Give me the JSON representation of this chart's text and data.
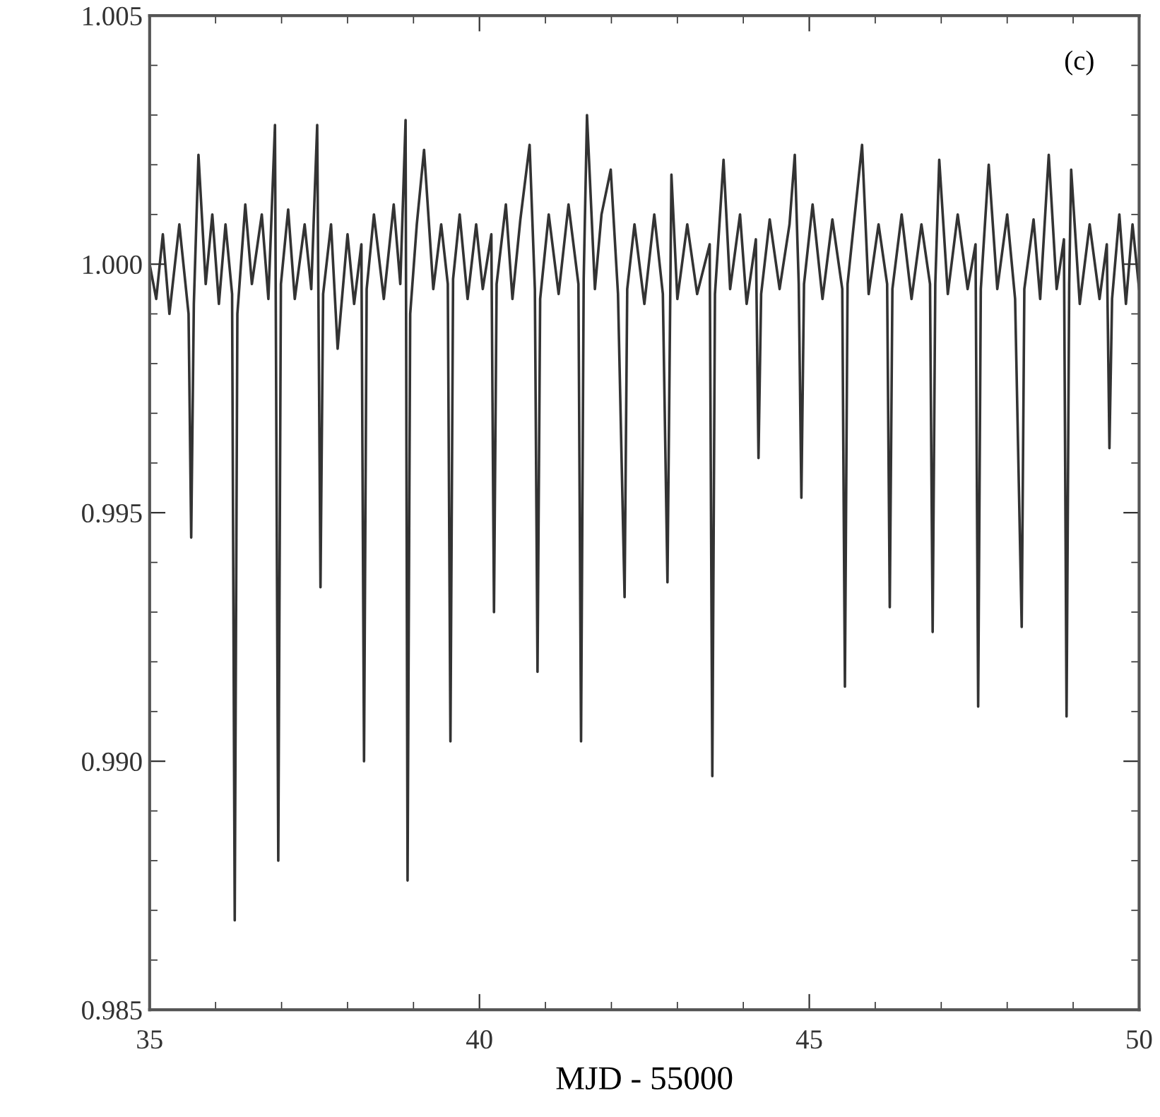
{
  "chart_data": {
    "type": "line",
    "xlabel": "MJD - 55000",
    "annotations": [
      "(c)"
    ],
    "xlim": [
      35,
      50
    ],
    "xticks": [
      35,
      40,
      45,
      50
    ],
    "ylim": [
      0.985,
      1.005
    ],
    "yticks": [
      {
        "value": 0.985,
        "label": "0.985"
      },
      {
        "value": 0.99,
        "label": "0.990"
      },
      {
        "value": 0.995,
        "label": "0.995"
      },
      {
        "value": 1.0,
        "label": "1.000"
      },
      {
        "value": 1.005,
        "label": "1.005"
      }
    ],
    "grid": false,
    "marker": "none",
    "line_style": "solid",
    "series": [
      {
        "color": "#333333",
        "x": [
          35.0,
          35.1,
          35.2,
          35.3,
          35.45,
          35.59,
          35.63,
          35.67,
          35.74,
          35.85,
          35.95,
          36.05,
          36.15,
          36.25,
          36.29,
          36.33,
          36.45,
          36.55,
          36.7,
          36.8,
          36.9,
          36.95,
          36.99,
          37.1,
          37.2,
          37.35,
          37.45,
          37.54,
          37.59,
          37.63,
          37.75,
          37.85,
          38.0,
          38.1,
          38.21,
          38.25,
          38.29,
          38.4,
          38.55,
          38.7,
          38.8,
          38.88,
          38.91,
          38.95,
          39.05,
          39.16,
          39.3,
          39.42,
          39.52,
          39.56,
          39.6,
          39.7,
          39.82,
          39.95,
          40.05,
          40.18,
          40.22,
          40.26,
          40.4,
          40.5,
          40.62,
          40.76,
          40.84,
          40.88,
          40.92,
          41.05,
          41.2,
          41.35,
          41.5,
          41.54,
          41.58,
          41.63,
          41.75,
          41.85,
          41.99,
          42.1,
          42.2,
          42.24,
          42.35,
          42.5,
          42.65,
          42.78,
          42.85,
          42.91,
          43.0,
          43.15,
          43.3,
          43.49,
          43.53,
          43.57,
          43.7,
          43.8,
          43.95,
          44.05,
          44.19,
          44.23,
          44.27,
          44.4,
          44.55,
          44.7,
          44.78,
          44.84,
          44.88,
          44.92,
          45.05,
          45.2,
          45.35,
          45.5,
          45.54,
          45.58,
          45.8,
          45.9,
          46.05,
          46.18,
          46.22,
          46.26,
          46.4,
          46.55,
          46.7,
          46.83,
          46.87,
          46.91,
          46.97,
          47.1,
          47.25,
          47.4,
          47.52,
          47.56,
          47.6,
          47.72,
          47.85,
          48.0,
          48.12,
          48.22,
          48.26,
          48.4,
          48.5,
          48.63,
          48.75,
          48.86,
          48.9,
          48.94,
          48.97,
          49.1,
          49.25,
          49.4,
          49.51,
          49.55,
          49.59,
          49.7,
          49.8,
          49.9,
          50.0
        ],
        "values": [
          1.0,
          0.9993,
          1.0006,
          0.999,
          1.0008,
          0.999,
          0.9945,
          0.9992,
          1.0022,
          0.9996,
          1.001,
          0.9992,
          1.0008,
          0.9994,
          0.9868,
          0.999,
          1.0012,
          0.9996,
          1.001,
          0.9993,
          1.0028,
          0.988,
          0.9996,
          1.0011,
          0.9993,
          1.0008,
          0.9995,
          1.0028,
          0.9935,
          0.9994,
          1.0008,
          0.9983,
          1.0006,
          0.9992,
          1.0004,
          0.99,
          0.9995,
          1.001,
          0.9993,
          1.0012,
          0.9996,
          1.0029,
          0.9876,
          0.999,
          1.0008,
          1.0023,
          0.9995,
          1.0008,
          0.9996,
          0.9904,
          0.9997,
          1.001,
          0.9993,
          1.0008,
          0.9995,
          1.0006,
          0.993,
          0.9996,
          1.0012,
          0.9993,
          1.0009,
          1.0024,
          0.9995,
          0.9918,
          0.9993,
          1.001,
          0.9994,
          1.0012,
          0.9996,
          0.9904,
          0.9997,
          1.003,
          0.9995,
          1.001,
          1.0019,
          0.9994,
          0.9933,
          0.9995,
          1.0008,
          0.9992,
          1.001,
          0.9994,
          0.9936,
          1.0018,
          0.9993,
          1.0008,
          0.9994,
          1.0004,
          0.9897,
          0.9994,
          1.0021,
          0.9995,
          1.001,
          0.9992,
          1.0005,
          0.9961,
          0.9994,
          1.0009,
          0.9995,
          1.0008,
          1.0022,
          0.9996,
          0.9953,
          0.9996,
          1.0012,
          0.9993,
          1.0009,
          0.9995,
          0.9915,
          0.9996,
          1.0024,
          0.9994,
          1.0008,
          0.9996,
          0.9931,
          0.9995,
          1.001,
          0.9993,
          1.0008,
          0.9996,
          0.9926,
          0.9996,
          1.0021,
          0.9994,
          1.001,
          0.9995,
          1.0004,
          0.9911,
          0.9995,
          1.002,
          0.9995,
          1.001,
          0.9993,
          0.9927,
          0.9995,
          1.0009,
          0.9993,
          1.0022,
          0.9995,
          1.0005,
          0.9909,
          0.9996,
          1.0019,
          0.9992,
          1.0008,
          0.9993,
          1.0004,
          0.9963,
          0.9993,
          1.001,
          0.9992,
          1.0008,
          0.9995
        ]
      }
    ]
  }
}
